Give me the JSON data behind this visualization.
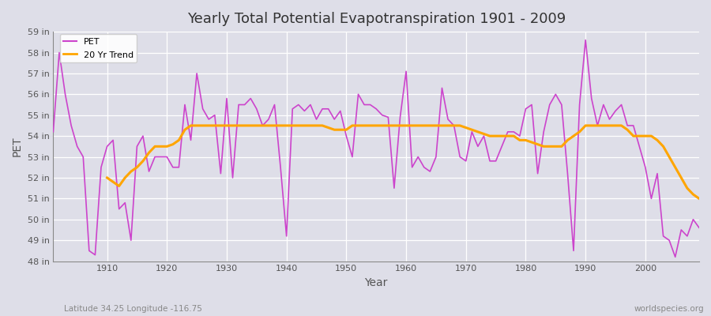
{
  "title": "Yearly Total Potential Evapotranspiration 1901 - 2009",
  "xlabel": "Year",
  "ylabel": "PET",
  "subtitle": "Latitude 34.25 Longitude -116.75",
  "watermark": "worldspecies.org",
  "pet_color": "#CC44CC",
  "trend_color": "#FFA500",
  "background_color": "#DEDEE8",
  "plot_background": "#DEDEE8",
  "ylim": [
    48,
    59
  ],
  "yticks": [
    48,
    49,
    50,
    51,
    52,
    53,
    54,
    55,
    56,
    57,
    58,
    59
  ],
  "ytick_labels": [
    "48 in",
    "49 in",
    "50 in",
    "51 in",
    "52 in",
    "53 in",
    "54 in",
    "55 in",
    "56 in",
    "57 in",
    "58 in",
    "59 in"
  ],
  "years": [
    1901,
    1902,
    1903,
    1904,
    1905,
    1906,
    1907,
    1908,
    1909,
    1910,
    1911,
    1912,
    1913,
    1914,
    1915,
    1916,
    1917,
    1918,
    1919,
    1920,
    1921,
    1922,
    1923,
    1924,
    1925,
    1926,
    1927,
    1928,
    1929,
    1930,
    1931,
    1932,
    1933,
    1934,
    1935,
    1936,
    1937,
    1938,
    1939,
    1940,
    1941,
    1942,
    1943,
    1944,
    1945,
    1946,
    1947,
    1948,
    1949,
    1950,
    1951,
    1952,
    1953,
    1954,
    1955,
    1956,
    1957,
    1958,
    1959,
    1960,
    1961,
    1962,
    1963,
    1964,
    1965,
    1966,
    1967,
    1968,
    1969,
    1970,
    1971,
    1972,
    1973,
    1974,
    1975,
    1976,
    1977,
    1978,
    1979,
    1980,
    1981,
    1982,
    1983,
    1984,
    1985,
    1986,
    1987,
    1988,
    1989,
    1990,
    1991,
    1992,
    1993,
    1994,
    1995,
    1996,
    1997,
    1998,
    1999,
    2000,
    2001,
    2002,
    2003,
    2004,
    2005,
    2006,
    2007,
    2008,
    2009
  ],
  "pet_values": [
    54.2,
    58.0,
    56.0,
    54.5,
    53.5,
    53.0,
    48.5,
    48.3,
    52.5,
    53.5,
    53.8,
    50.5,
    50.8,
    49.0,
    53.5,
    54.0,
    52.3,
    53.0,
    53.0,
    53.0,
    52.5,
    52.5,
    55.5,
    53.8,
    57.0,
    55.3,
    54.8,
    55.0,
    52.2,
    55.8,
    52.0,
    55.5,
    55.5,
    55.8,
    55.3,
    54.5,
    54.8,
    55.5,
    52.5,
    49.2,
    55.3,
    55.5,
    55.2,
    55.5,
    54.8,
    55.3,
    55.3,
    54.8,
    55.2,
    54.0,
    53.0,
    56.0,
    55.5,
    55.5,
    55.3,
    55.0,
    54.9,
    51.5,
    54.9,
    57.1,
    52.5,
    53.0,
    52.5,
    52.3,
    53.0,
    56.3,
    54.8,
    54.5,
    53.0,
    52.8,
    54.2,
    53.5,
    54.0,
    52.8,
    52.8,
    53.5,
    54.2,
    54.2,
    54.0,
    55.3,
    55.5,
    52.2,
    54.2,
    55.5,
    56.0,
    55.5,
    52.2,
    48.5,
    55.5,
    58.6,
    55.8,
    54.5,
    55.5,
    54.8,
    55.2,
    55.5,
    54.5,
    54.5,
    53.5,
    52.5,
    51.0,
    52.2,
    49.2,
    49.0,
    48.2,
    49.5,
    49.2,
    50.0,
    49.6
  ],
  "trend_years": [
    1910,
    1911,
    1912,
    1913,
    1914,
    1915,
    1916,
    1917,
    1918,
    1919,
    1920,
    1921,
    1922,
    1923,
    1924,
    1925,
    1926,
    1927,
    1928,
    1929,
    1930,
    1931,
    1932,
    1933,
    1934,
    1935,
    1936,
    1937,
    1938,
    1939,
    1940,
    1941,
    1942,
    1943,
    1944,
    1945,
    1946,
    1947,
    1948,
    1949,
    1950,
    1951,
    1952,
    1953,
    1954,
    1955,
    1956,
    1957,
    1958,
    1959,
    1960,
    1961,
    1962,
    1963,
    1964,
    1965,
    1966,
    1967,
    1968,
    1969,
    1970,
    1971,
    1972,
    1973,
    1974,
    1975,
    1976,
    1977,
    1978,
    1979,
    1980,
    1981,
    1982,
    1983,
    1984,
    1985,
    1986,
    1987,
    1988,
    1989,
    1990,
    1991,
    1992,
    1993,
    1994,
    1995,
    1996,
    1997,
    1998,
    1999,
    2000,
    2001,
    2002,
    2003,
    2004,
    2005,
    2006,
    2007,
    2008,
    2009
  ],
  "trend_values": [
    52.0,
    51.8,
    51.6,
    52.0,
    52.3,
    52.5,
    52.8,
    53.2,
    53.5,
    53.5,
    53.5,
    53.6,
    53.8,
    54.3,
    54.5,
    54.5,
    54.5,
    54.5,
    54.5,
    54.5,
    54.5,
    54.5,
    54.5,
    54.5,
    54.5,
    54.5,
    54.5,
    54.5,
    54.5,
    54.5,
    54.5,
    54.5,
    54.5,
    54.5,
    54.5,
    54.5,
    54.5,
    54.4,
    54.3,
    54.3,
    54.3,
    54.5,
    54.5,
    54.5,
    54.5,
    54.5,
    54.5,
    54.5,
    54.5,
    54.5,
    54.5,
    54.5,
    54.5,
    54.5,
    54.5,
    54.5,
    54.5,
    54.5,
    54.5,
    54.5,
    54.4,
    54.3,
    54.2,
    54.1,
    54.0,
    54.0,
    54.0,
    54.0,
    54.0,
    53.8,
    53.8,
    53.7,
    53.6,
    53.5,
    53.5,
    53.5,
    53.5,
    53.8,
    54.0,
    54.2,
    54.5,
    54.5,
    54.5,
    54.5,
    54.5,
    54.5,
    54.5,
    54.3,
    54.0,
    54.0,
    54.0,
    54.0,
    53.8,
    53.5,
    53.0,
    52.5,
    52.0,
    51.5,
    51.2,
    51.0
  ]
}
